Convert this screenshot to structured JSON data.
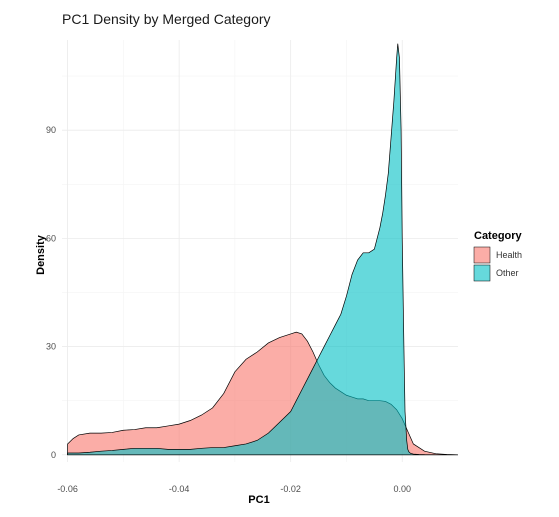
{
  "chart_data": {
    "type": "area",
    "title": "PC1 Density by Merged Category",
    "xlabel": "PC1",
    "ylabel": "Density",
    "xlim": [
      -0.061,
      0.01
    ],
    "ylim": [
      -2,
      115
    ],
    "x_ticks": [
      -0.06,
      -0.04,
      -0.02,
      0.0
    ],
    "x_tick_labels": [
      "-0.06",
      "-0.04",
      "-0.02",
      "0.00"
    ],
    "y_ticks": [
      0,
      30,
      60,
      90
    ],
    "y_tick_labels": [
      "0",
      "30",
      "60",
      "90"
    ],
    "grid": true,
    "legend": {
      "title": "Category",
      "position": "right",
      "entries": [
        "Health",
        "Other"
      ]
    },
    "series": [
      {
        "name": "Health",
        "color": "#F8766D",
        "x": [
          -0.06,
          -0.059,
          -0.058,
          -0.056,
          -0.054,
          -0.052,
          -0.05,
          -0.048,
          -0.046,
          -0.044,
          -0.042,
          -0.04,
          -0.038,
          -0.036,
          -0.034,
          -0.032,
          -0.03,
          -0.028,
          -0.026,
          -0.024,
          -0.022,
          -0.02,
          -0.019,
          -0.018,
          -0.017,
          -0.016,
          -0.015,
          -0.014,
          -0.013,
          -0.012,
          -0.011,
          -0.01,
          -0.009,
          -0.008,
          -0.007,
          -0.006,
          -0.005,
          -0.004,
          -0.003,
          -0.002,
          -0.001,
          0.0,
          0.001,
          0.002,
          0.004,
          0.006,
          0.008,
          0.01
        ],
        "y": [
          3,
          4.5,
          5.5,
          6,
          6,
          6.2,
          6.8,
          7,
          7.5,
          7.5,
          8,
          8.5,
          9.5,
          11,
          13,
          17,
          23,
          26.5,
          28.5,
          31,
          32.5,
          33.5,
          34,
          33.5,
          31.5,
          28.5,
          25,
          22,
          20,
          18.5,
          17.5,
          16.5,
          16,
          15.5,
          15.5,
          15,
          15,
          15,
          14.8,
          14,
          12.5,
          10,
          6.5,
          3,
          1,
          0.3,
          0.1,
          0
        ]
      },
      {
        "name": "Other",
        "color": "#00BFC4",
        "x": [
          -0.06,
          -0.058,
          -0.056,
          -0.054,
          -0.052,
          -0.05,
          -0.048,
          -0.046,
          -0.044,
          -0.042,
          -0.04,
          -0.038,
          -0.036,
          -0.034,
          -0.032,
          -0.03,
          -0.028,
          -0.026,
          -0.024,
          -0.022,
          -0.02,
          -0.019,
          -0.018,
          -0.017,
          -0.016,
          -0.015,
          -0.014,
          -0.013,
          -0.012,
          -0.011,
          -0.01,
          -0.009,
          -0.008,
          -0.007,
          -0.006,
          -0.005,
          -0.004,
          -0.0035,
          -0.003,
          -0.0025,
          -0.002,
          -0.0015,
          -0.001,
          -0.0008,
          -0.0005,
          -0.0002,
          0.0,
          0.0003,
          0.0005,
          0.0008,
          0.001,
          0.0012,
          0.0015,
          0.002,
          0.003,
          0.004,
          0.006,
          0.008,
          0.01
        ],
        "y": [
          0.5,
          0.5,
          0.7,
          1,
          1.2,
          1.5,
          1.8,
          1.8,
          1.8,
          1.5,
          1.5,
          1.5,
          1.8,
          2,
          2,
          2.5,
          3,
          4,
          6,
          9,
          12,
          15,
          18,
          21,
          24,
          27,
          30,
          33,
          36,
          39,
          44,
          50,
          54,
          56,
          56,
          57,
          63,
          67,
          72,
          78,
          88,
          98,
          110,
          114,
          110,
          90,
          60,
          30,
          12,
          4,
          1.5,
          0.8,
          0.4,
          0.2,
          0.1,
          0.05,
          0.02,
          0.01,
          0
        ]
      }
    ]
  }
}
